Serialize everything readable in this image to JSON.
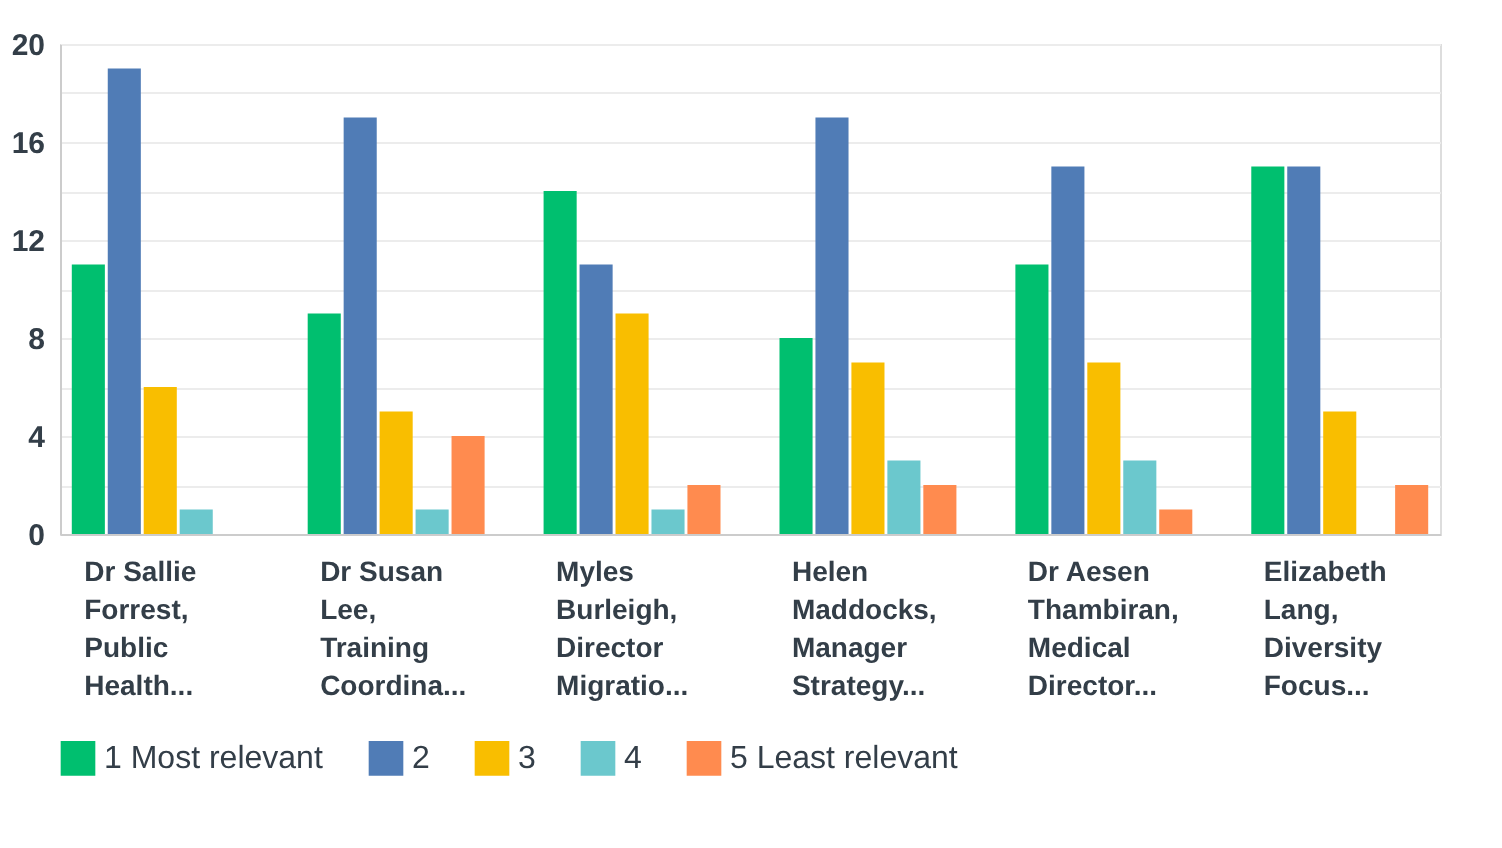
{
  "chart_data": {
    "type": "bar",
    "categories": [
      "Dr Sallie Forrest, Public Health...",
      "Dr Susan Lee, Training Coordina...",
      "Myles Burleigh, Director Migratio...",
      "Helen Maddocks, Manager Strategy...",
      "Dr Aesen Thambiran, Medical Director...",
      "Elizabeth Lang, Diversity Focus..."
    ],
    "series": [
      {
        "name": "1 Most relevant",
        "color": "#00bf6f",
        "values": [
          11,
          9,
          14,
          8,
          11,
          15
        ]
      },
      {
        "name": "2",
        "color": "#507cb6",
        "values": [
          19,
          17,
          11,
          17,
          15,
          15
        ]
      },
      {
        "name": "3",
        "color": "#f9be00",
        "values": [
          6,
          5,
          9,
          7,
          7,
          5
        ]
      },
      {
        "name": "4",
        "color": "#6bc8cd",
        "values": [
          1,
          1,
          1,
          3,
          3,
          0
        ]
      },
      {
        "name": "5 Least relevant",
        "color": "#ff8b4f",
        "values": [
          0,
          4,
          2,
          2,
          1,
          2
        ]
      }
    ],
    "ylim": [
      0,
      20
    ],
    "yticks": [
      0,
      {
        "value": 2,
        "label": null
      },
      4,
      {
        "value": 6,
        "label": null
      },
      8,
      {
        "value": 10,
        "label": null
      },
      12,
      {
        "value": 14,
        "label": null
      },
      16,
      {
        "value": 18,
        "label": null
      },
      20
    ],
    "grid": "y",
    "legend": "bottom left"
  }
}
